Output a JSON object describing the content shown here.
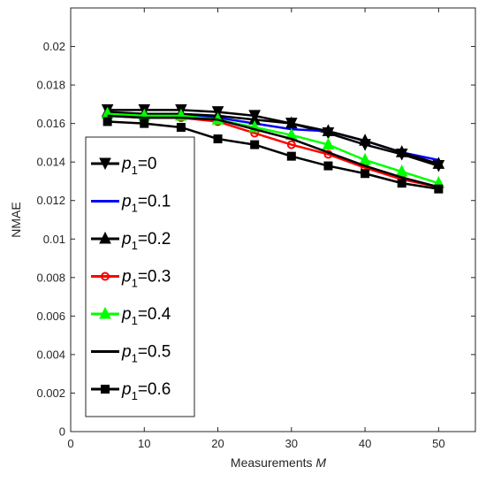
{
  "chart_data": {
    "type": "line",
    "title": "",
    "xlabel": "Measurements",
    "xlabel_var": "M",
    "ylabel": "NMAE",
    "xlim": [
      0,
      55
    ],
    "ylim": [
      0,
      0.022
    ],
    "x_ticks": [
      "0",
      "10",
      "20",
      "30",
      "40",
      "50"
    ],
    "y_ticks": [
      "0",
      "0.002",
      "0.004",
      "0.006",
      "0.008",
      "0.01",
      "0.012",
      "0.014",
      "0.016",
      "0.018",
      "0.02"
    ],
    "grid": false,
    "legend_position": "left",
    "x": [
      5,
      10,
      15,
      20,
      25,
      30,
      35,
      40,
      45,
      50
    ],
    "series": [
      {
        "name": "p1=0",
        "label_var": "p",
        "label_sub": "1",
        "label_val": "=0",
        "color": "#000000",
        "marker": "triangle-down",
        "values": [
          0.0167,
          0.0167,
          0.0167,
          0.0166,
          0.0164,
          0.016,
          0.0155,
          0.0149,
          0.0144,
          0.0138
        ]
      },
      {
        "name": "p1=0.1",
        "label_var": "p",
        "label_sub": "1",
        "label_val": "=0.1",
        "color": "#0000ff",
        "marker": "none",
        "values": [
          0.0165,
          0.0165,
          0.0164,
          0.0163,
          0.016,
          0.0157,
          0.0156,
          0.0151,
          0.0145,
          0.0141
        ]
      },
      {
        "name": "p1=0.2",
        "label_var": "p",
        "label_sub": "1",
        "label_val": "=0.2",
        "color": "#000000",
        "marker": "triangle-up",
        "values": [
          0.0166,
          0.0165,
          0.0165,
          0.0164,
          0.0162,
          0.016,
          0.0156,
          0.0151,
          0.0145,
          0.0139
        ]
      },
      {
        "name": "p1=0.3",
        "label_var": "p",
        "label_sub": "1",
        "label_val": "=0.3",
        "color": "#ff0000",
        "marker": "circle",
        "values": [
          0.0164,
          0.0163,
          0.0163,
          0.0161,
          0.0155,
          0.0149,
          0.0144,
          0.0137,
          0.0131,
          0.0127
        ]
      },
      {
        "name": "p1=0.4",
        "label_var": "p",
        "label_sub": "1",
        "label_val": "=0.4",
        "color": "#00ff00",
        "marker": "triangle-up",
        "values": [
          0.0165,
          0.0164,
          0.0164,
          0.0162,
          0.0158,
          0.0154,
          0.0149,
          0.0141,
          0.0135,
          0.0129
        ]
      },
      {
        "name": "p1=0.5",
        "label_var": "p",
        "label_sub": "1",
        "label_val": "=0.5",
        "color": "#000000",
        "marker": "none",
        "values": [
          0.0164,
          0.0163,
          0.0163,
          0.0162,
          0.0157,
          0.0152,
          0.0145,
          0.0138,
          0.0132,
          0.0127
        ]
      },
      {
        "name": "p1=0.6",
        "label_var": "p",
        "label_sub": "1",
        "label_val": "=0.6",
        "color": "#000000",
        "marker": "square",
        "values": [
          0.0161,
          0.016,
          0.0158,
          0.0152,
          0.0149,
          0.0143,
          0.0138,
          0.0134,
          0.0129,
          0.0126
        ]
      }
    ]
  }
}
